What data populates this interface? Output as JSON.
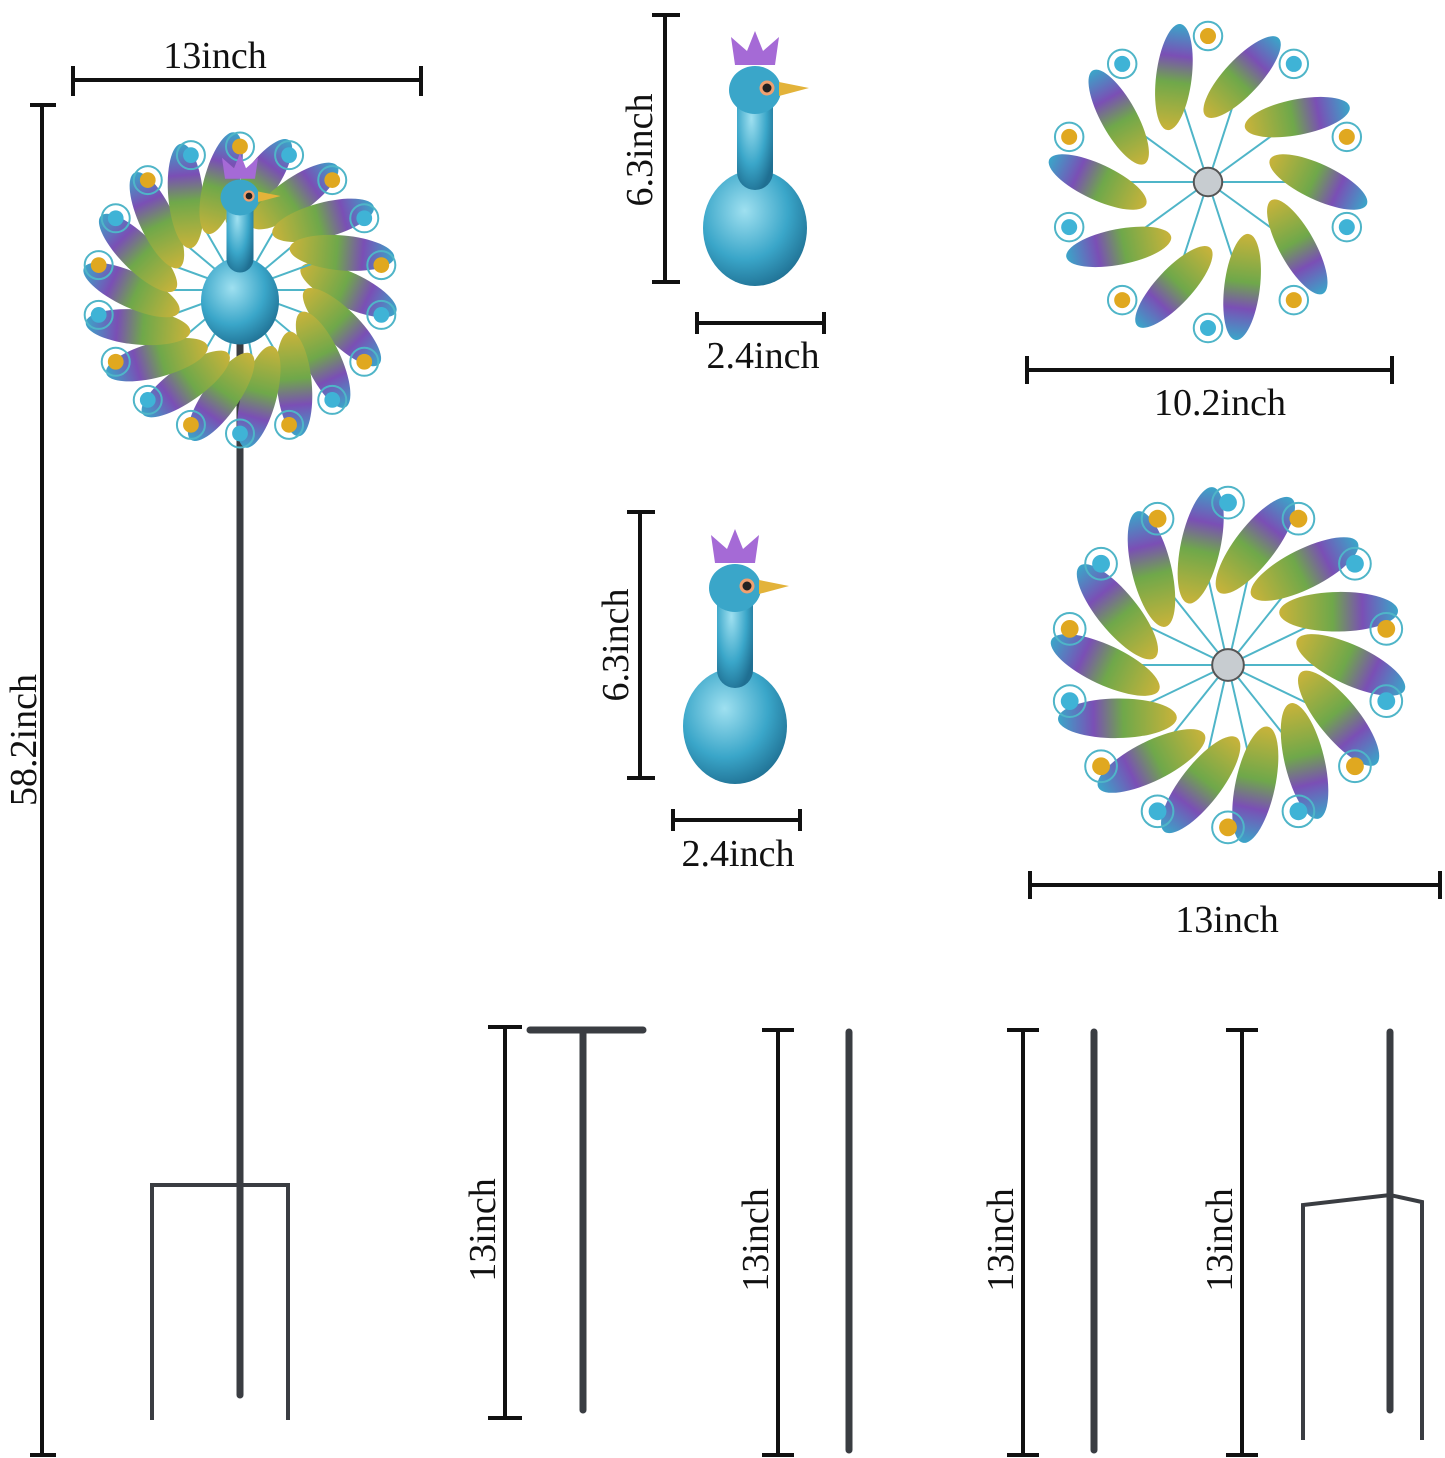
{
  "dimensions": {
    "assembled_width": "13inch",
    "assembled_height": "58.2inch",
    "peacock_top_height": "6.3inch",
    "peacock_top_width": "2.4inch",
    "small_wheel_width": "10.2inch",
    "peacock_bottom_height": "6.3inch",
    "peacock_bottom_width": "2.4inch",
    "large_wheel_width": "13inch",
    "pole_1_length": "13inch",
    "pole_2_length": "13inch",
    "pole_3_length": "13inch",
    "pole_4_length": "13inch"
  },
  "colors": {
    "peacock_body": "#3aa6c9",
    "feather_green": "#8fb04a",
    "feather_purple": "#7a4fb5",
    "gem_blue": "#3fb3d6",
    "gem_amber": "#e0a820",
    "crown": "#a56ad6",
    "pole": "#3a3d42"
  }
}
